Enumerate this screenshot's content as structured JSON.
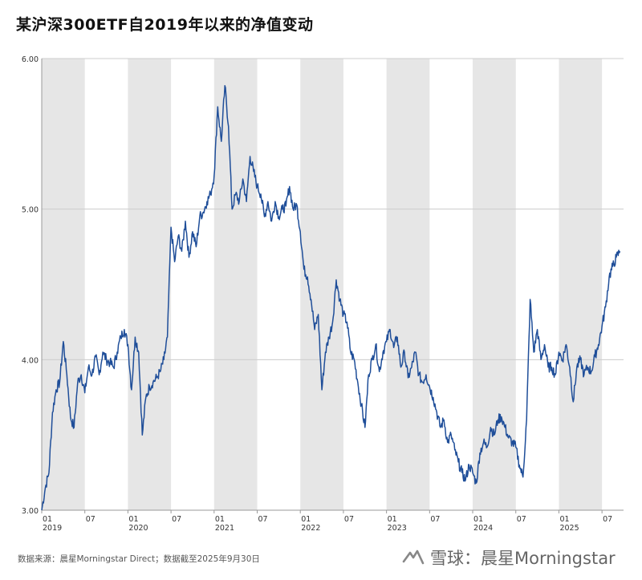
{
  "title": "某沪深300ETF自2019年以来的净值变动",
  "source": "数据来源：晨星Morningstar Direct；数据截至2025年9月30日",
  "watermark": {
    "brand": "雪球：晨星Morningstar",
    "icon": "xueqiu-logo-icon"
  },
  "colors": {
    "line": "#1f4e99",
    "band": "#e6e6e6",
    "grid": "#cccccc",
    "axis": "#999999"
  },
  "chart_data": {
    "type": "line",
    "title": "某沪深300ETF自2019年以来的净值变动",
    "xlabel": "",
    "ylabel": "",
    "ylim": [
      3.0,
      6.0
    ],
    "yticks": [
      "3.00",
      "4.00",
      "5.00",
      "6.00"
    ],
    "xlim": [
      "2019-01",
      "2025-09"
    ],
    "xtick_labels": [
      {
        "month": "01",
        "year": "2019",
        "t": 0
      },
      {
        "month": "07",
        "year": "",
        "t": 6
      },
      {
        "month": "01",
        "year": "2020",
        "t": 12
      },
      {
        "month": "07",
        "year": "",
        "t": 18
      },
      {
        "month": "01",
        "year": "2021",
        "t": 24
      },
      {
        "month": "07",
        "year": "",
        "t": 30
      },
      {
        "month": "01",
        "year": "2022",
        "t": 36
      },
      {
        "month": "07",
        "year": "",
        "t": 42
      },
      {
        "month": "01",
        "year": "2023",
        "t": 48
      },
      {
        "month": "07",
        "year": "",
        "t": 54
      },
      {
        "month": "01",
        "year": "2024",
        "t": 60
      },
      {
        "month": "07",
        "year": "",
        "t": 66
      },
      {
        "month": "01",
        "year": "2025",
        "t": 72
      },
      {
        "month": "07",
        "year": "",
        "t": 78
      }
    ],
    "shaded_bands": [
      [
        0,
        6
      ],
      [
        12,
        18
      ],
      [
        24,
        30
      ],
      [
        36,
        42
      ],
      [
        48,
        54
      ],
      [
        60,
        66
      ],
      [
        72,
        78
      ]
    ],
    "series": [
      {
        "name": "净值",
        "points": [
          [
            0,
            3.0
          ],
          [
            0.5,
            3.15
          ],
          [
            1.0,
            3.25
          ],
          [
            1.5,
            3.65
          ],
          [
            2.0,
            3.8
          ],
          [
            2.5,
            3.85
          ],
          [
            3.0,
            4.12
          ],
          [
            3.5,
            3.9
          ],
          [
            4.0,
            3.62
          ],
          [
            4.5,
            3.55
          ],
          [
            5.0,
            3.85
          ],
          [
            5.5,
            3.9
          ],
          [
            6.0,
            3.78
          ],
          [
            6.5,
            3.95
          ],
          [
            7.0,
            3.9
          ],
          [
            7.5,
            4.02
          ],
          [
            8.0,
            3.9
          ],
          [
            8.5,
            4.05
          ],
          [
            9.0,
            4.0
          ],
          [
            9.5,
            3.98
          ],
          [
            10.0,
            3.95
          ],
          [
            10.5,
            4.05
          ],
          [
            11.0,
            4.15
          ],
          [
            11.5,
            4.2
          ],
          [
            12.0,
            4.1
          ],
          [
            12.5,
            3.8
          ],
          [
            13.0,
            4.15
          ],
          [
            13.5,
            4.05
          ],
          [
            14.0,
            3.5
          ],
          [
            14.5,
            3.75
          ],
          [
            15.0,
            3.82
          ],
          [
            15.5,
            3.85
          ],
          [
            16.0,
            3.88
          ],
          [
            16.5,
            3.92
          ],
          [
            17.0,
            4.0
          ],
          [
            17.5,
            4.15
          ],
          [
            18.0,
            4.88
          ],
          [
            18.5,
            4.65
          ],
          [
            19.0,
            4.82
          ],
          [
            19.5,
            4.72
          ],
          [
            20.0,
            4.92
          ],
          [
            20.5,
            4.68
          ],
          [
            21.0,
            4.85
          ],
          [
            21.5,
            4.75
          ],
          [
            22.0,
            4.95
          ],
          [
            22.5,
            4.98
          ],
          [
            23.0,
            5.05
          ],
          [
            23.5,
            5.1
          ],
          [
            24.0,
            5.22
          ],
          [
            24.5,
            5.68
          ],
          [
            25.0,
            5.45
          ],
          [
            25.5,
            5.82
          ],
          [
            26.0,
            5.55
          ],
          [
            26.5,
            5.0
          ],
          [
            27.0,
            5.1
          ],
          [
            27.5,
            5.05
          ],
          [
            28.0,
            5.2
          ],
          [
            28.5,
            5.05
          ],
          [
            29.0,
            5.35
          ],
          [
            29.5,
            5.25
          ],
          [
            30.0,
            5.15
          ],
          [
            30.5,
            5.1
          ],
          [
            31.0,
            4.95
          ],
          [
            31.5,
            5.05
          ],
          [
            32.0,
            4.92
          ],
          [
            32.5,
            5.05
          ],
          [
            33.0,
            4.95
          ],
          [
            33.5,
            5.0
          ],
          [
            34.0,
            5.02
          ],
          [
            34.5,
            5.15
          ],
          [
            35.0,
            5.0
          ],
          [
            35.5,
            5.03
          ],
          [
            36.0,
            4.85
          ],
          [
            36.5,
            4.6
          ],
          [
            37.0,
            4.55
          ],
          [
            37.5,
            4.4
          ],
          [
            38.0,
            4.2
          ],
          [
            38.5,
            4.3
          ],
          [
            39.0,
            3.8
          ],
          [
            39.5,
            4.05
          ],
          [
            40.0,
            4.15
          ],
          [
            40.5,
            4.25
          ],
          [
            41.0,
            4.53
          ],
          [
            41.5,
            4.4
          ],
          [
            42.0,
            4.3
          ],
          [
            42.5,
            4.25
          ],
          [
            43.0,
            4.05
          ],
          [
            43.5,
            4.0
          ],
          [
            44.0,
            3.85
          ],
          [
            44.5,
            3.7
          ],
          [
            45.0,
            3.55
          ],
          [
            45.5,
            3.9
          ],
          [
            46.0,
            4.0
          ],
          [
            46.5,
            4.1
          ],
          [
            47.0,
            3.92
          ],
          [
            47.5,
            4.05
          ],
          [
            48.0,
            4.12
          ],
          [
            48.5,
            4.2
          ],
          [
            49.0,
            4.08
          ],
          [
            49.5,
            4.15
          ],
          [
            50.0,
            3.95
          ],
          [
            50.5,
            4.05
          ],
          [
            51.0,
            3.88
          ],
          [
            51.5,
            3.95
          ],
          [
            52.0,
            4.05
          ],
          [
            52.5,
            3.9
          ],
          [
            53.0,
            3.85
          ],
          [
            53.5,
            3.9
          ],
          [
            54.0,
            3.82
          ],
          [
            54.5,
            3.75
          ],
          [
            55.0,
            3.65
          ],
          [
            55.5,
            3.55
          ],
          [
            56.0,
            3.6
          ],
          [
            56.5,
            3.45
          ],
          [
            57.0,
            3.5
          ],
          [
            57.5,
            3.4
          ],
          [
            58.0,
            3.32
          ],
          [
            58.5,
            3.25
          ],
          [
            59.0,
            3.2
          ],
          [
            59.5,
            3.3
          ],
          [
            60.0,
            3.25
          ],
          [
            60.5,
            3.18
          ],
          [
            61.0,
            3.38
          ],
          [
            61.5,
            3.45
          ],
          [
            62.0,
            3.42
          ],
          [
            62.5,
            3.55
          ],
          [
            63.0,
            3.5
          ],
          [
            63.5,
            3.6
          ],
          [
            64.0,
            3.62
          ],
          [
            64.5,
            3.55
          ],
          [
            65.0,
            3.48
          ],
          [
            65.5,
            3.45
          ],
          [
            66.0,
            3.42
          ],
          [
            66.5,
            3.3
          ],
          [
            67.0,
            3.22
          ],
          [
            67.5,
            3.6
          ],
          [
            68.0,
            4.4
          ],
          [
            68.5,
            4.05
          ],
          [
            69.0,
            4.2
          ],
          [
            69.5,
            4.0
          ],
          [
            70.0,
            4.1
          ],
          [
            70.5,
            3.95
          ],
          [
            71.0,
            3.95
          ],
          [
            71.5,
            3.9
          ],
          [
            72.0,
            4.05
          ],
          [
            72.5,
            4.0
          ],
          [
            73.0,
            4.1
          ],
          [
            73.5,
            3.95
          ],
          [
            74.0,
            3.72
          ],
          [
            74.5,
            3.95
          ],
          [
            75.0,
            4.0
          ],
          [
            75.5,
            3.9
          ],
          [
            76.0,
            3.95
          ],
          [
            76.5,
            3.92
          ],
          [
            77.0,
            4.02
          ],
          [
            77.5,
            4.1
          ],
          [
            78.0,
            4.22
          ],
          [
            78.5,
            4.35
          ],
          [
            79.0,
            4.55
          ],
          [
            79.5,
            4.62
          ],
          [
            80.0,
            4.68
          ],
          [
            80.5,
            4.72
          ]
        ]
      }
    ]
  }
}
